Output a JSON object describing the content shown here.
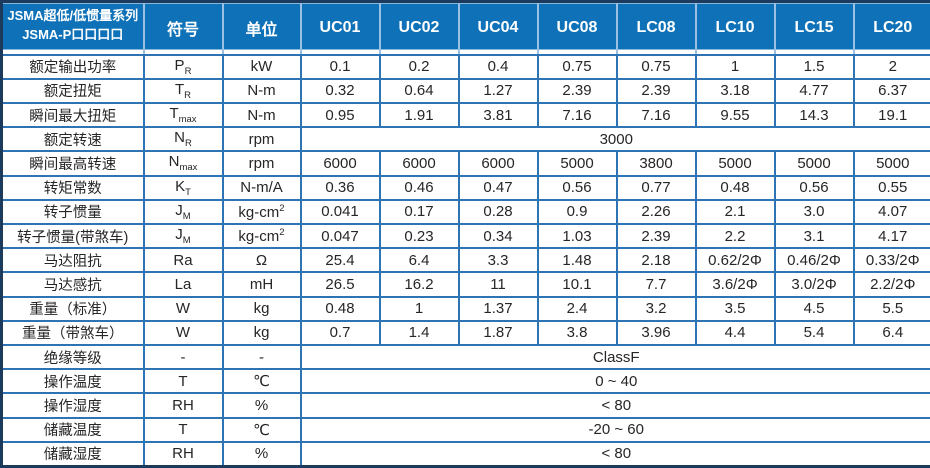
{
  "table": {
    "title_line1": "JSMA超低/低惯量系列",
    "title_line2": "JSMA-P口口口口",
    "symbol_header": "符号",
    "unit_header": "单位",
    "models": [
      "UC01",
      "UC02",
      "UC04",
      "UC08",
      "LC08",
      "LC10",
      "LC15",
      "LC20"
    ],
    "colors": {
      "header_bg": "#0f72b8",
      "grid_border": "#2e74b5",
      "outer_border": "#1b3a5c",
      "header_separator": "#9cc0e4",
      "text": "#262626"
    },
    "rows": [
      {
        "label": "额定输出功率",
        "symbol": "P",
        "symbol_sub": "R",
        "unit": "kW",
        "values": [
          "0.1",
          "0.2",
          "0.4",
          "0.75",
          "0.75",
          "1",
          "1.5",
          "2"
        ]
      },
      {
        "label": "额定扭矩",
        "symbol": "T",
        "symbol_sub": "R",
        "unit": "N-m",
        "values": [
          "0.32",
          "0.64",
          "1.27",
          "2.39",
          "2.39",
          "3.18",
          "4.77",
          "6.37"
        ]
      },
      {
        "label": "瞬间最大扭矩",
        "symbol": "T",
        "symbol_sub": "max",
        "unit": "N-m",
        "values": [
          "0.95",
          "1.91",
          "3.81",
          "7.16",
          "7.16",
          "9.55",
          "14.3",
          "19.1"
        ]
      },
      {
        "label": "额定转速",
        "symbol": "N",
        "symbol_sub": "R",
        "unit": "rpm",
        "merged": "3000"
      },
      {
        "label": "瞬间最高转速",
        "symbol": "N",
        "symbol_sub": "max",
        "unit": "rpm",
        "values": [
          "6000",
          "6000",
          "6000",
          "5000",
          "3800",
          "5000",
          "5000",
          "5000"
        ]
      },
      {
        "label": "转矩常数",
        "symbol": "K",
        "symbol_sub": "T",
        "unit": "N-m/A",
        "values": [
          "0.36",
          "0.46",
          "0.47",
          "0.56",
          "0.77",
          "0.48",
          "0.56",
          "0.55"
        ]
      },
      {
        "label": "转子惯量",
        "symbol": "J",
        "symbol_sub": "M",
        "unit": "kg-cm",
        "unit_sup": "2",
        "values": [
          "0.041",
          "0.17",
          "0.28",
          "0.9",
          "2.26",
          "2.1",
          "3.0",
          "4.07"
        ]
      },
      {
        "label": "转子惯量(带煞车)",
        "symbol": "J",
        "symbol_sub": "M",
        "unit": "kg-cm",
        "unit_sup": "2",
        "values": [
          "0.047",
          "0.23",
          "0.34",
          "1.03",
          "2.39",
          "2.2",
          "3.1",
          "4.17"
        ]
      },
      {
        "label": "马达阻抗",
        "symbol": "Ra",
        "unit": "Ω",
        "values": [
          "25.4",
          "6.4",
          "3.3",
          "1.48",
          "2.18",
          "0.62/2Φ",
          "0.46/2Φ",
          "0.33/2Φ"
        ]
      },
      {
        "label": "马达感抗",
        "symbol": "La",
        "unit": "mH",
        "values": [
          "26.5",
          "16.2",
          "11",
          "10.1",
          "7.7",
          "3.6/2Φ",
          "3.0/2Φ",
          "2.2/2Φ"
        ]
      },
      {
        "label": "重量（标准）",
        "symbol": "W",
        "unit": "kg",
        "values": [
          "0.48",
          "1",
          "1.37",
          "2.4",
          "3.2",
          "3.5",
          "4.5",
          "5.5"
        ]
      },
      {
        "label": "重量（带煞车）",
        "symbol": "W",
        "unit": "kg",
        "values": [
          "0.7",
          "1.4",
          "1.87",
          "3.8",
          "3.96",
          "4.4",
          "5.4",
          "6.4"
        ]
      },
      {
        "label": "绝缘等级",
        "symbol": "-",
        "unit": "-",
        "merged": "ClassF"
      },
      {
        "label": "操作温度",
        "symbol": "T",
        "unit": "℃",
        "merged": "0 ~ 40"
      },
      {
        "label": "操作湿度",
        "symbol": "RH",
        "unit": "%",
        "merged": "< 80"
      },
      {
        "label": "储藏温度",
        "symbol": "T",
        "unit": "℃",
        "merged": "-20 ~ 60"
      },
      {
        "label": "储藏湿度",
        "symbol": "RH",
        "unit": "%",
        "merged": "< 80"
      }
    ]
  }
}
